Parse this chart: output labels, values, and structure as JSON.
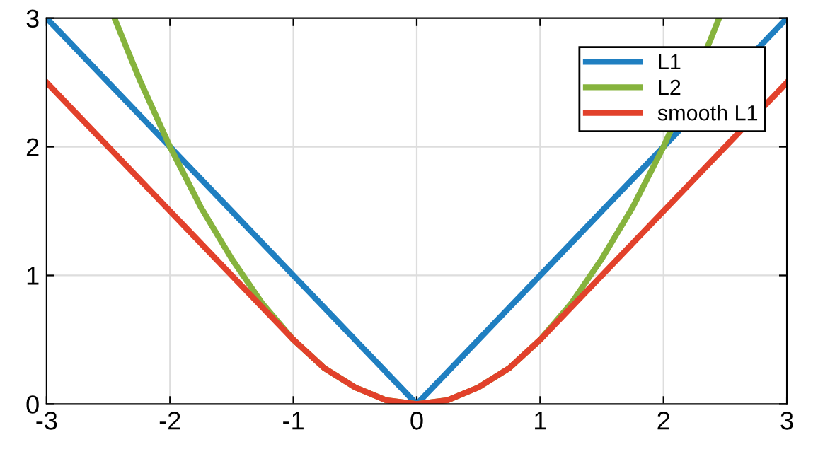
{
  "chart_data": {
    "type": "line",
    "xlim": [
      -3,
      3
    ],
    "ylim": [
      0,
      3
    ],
    "xticks": [
      -3,
      -2,
      -1,
      0,
      1,
      2,
      3
    ],
    "yticks": [
      0,
      1,
      2,
      3
    ],
    "grid": true,
    "legend": "top right",
    "line_style": "solid",
    "marker": "none",
    "series": [
      {
        "name": "L1",
        "color": "#1f7fc1",
        "x": [
          -3,
          0,
          3
        ],
        "values": [
          3,
          0,
          3
        ]
      },
      {
        "name": "L2",
        "color": "#86b33d",
        "x": [
          -2.45,
          -2.25,
          -2,
          -1.75,
          -1.5,
          -1.25,
          -1,
          -0.75,
          -0.5,
          -0.25,
          0,
          0.25,
          0.5,
          0.75,
          1,
          1.25,
          1.5,
          1.75,
          2,
          2.38,
          2.45
        ],
        "values": [
          3.0,
          2.53,
          2.0,
          1.53,
          1.13,
          0.78,
          0.5,
          0.28,
          0.13,
          0.03,
          0,
          0.03,
          0.13,
          0.28,
          0.5,
          0.78,
          1.13,
          1.53,
          2.0,
          2.83,
          3.0
        ]
      },
      {
        "name": "smooth L1",
        "color": "#e2412b",
        "x": [
          -3,
          -1,
          -0.75,
          -0.5,
          -0.25,
          0,
          0.25,
          0.5,
          0.75,
          1,
          3
        ],
        "values": [
          2.5,
          0.5,
          0.28,
          0.13,
          0.03,
          0,
          0.03,
          0.13,
          0.28,
          0.5,
          2.5
        ]
      }
    ]
  }
}
